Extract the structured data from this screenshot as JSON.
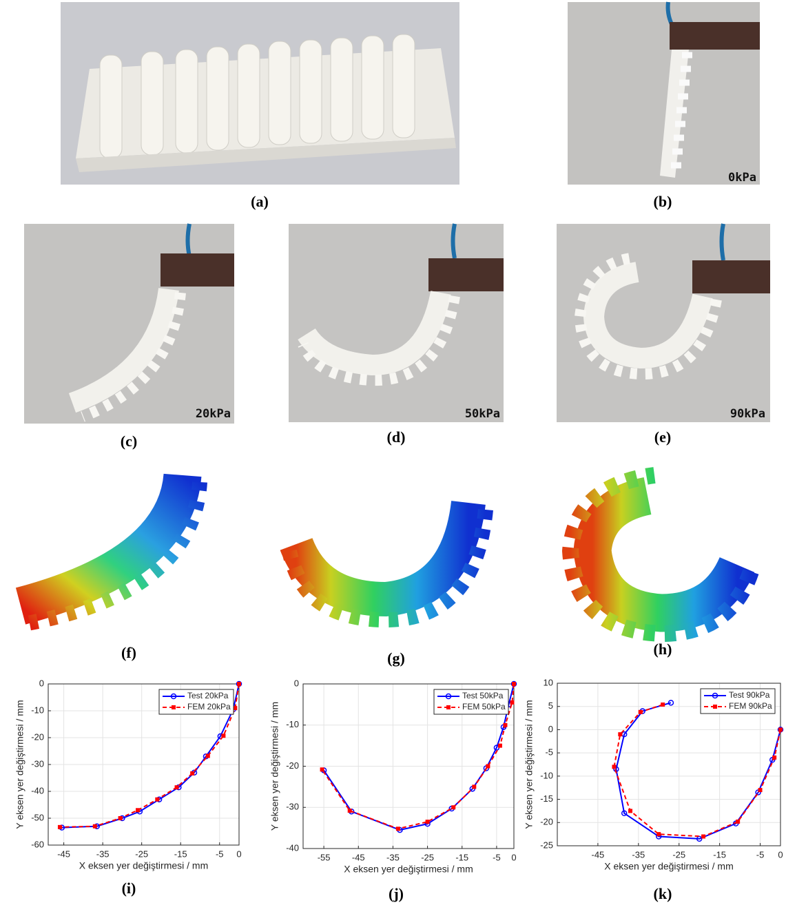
{
  "figure": {
    "labels": [
      "(a)",
      "(b)",
      "(c)",
      "(d)",
      "(e)",
      "(f)",
      "(g)",
      "(h)",
      "(i)",
      "(j)",
      "(k)"
    ],
    "pressure_labels": [
      "0kPa",
      "20kPa",
      "50kPa",
      "90kPa"
    ]
  },
  "chart_data": [
    {
      "type": "line",
      "xlabel": "X eksen yer değiştirmesi / mm",
      "ylabel": "Y eksen yer değiştirmesi / mm",
      "xlim": [
        -49,
        0
      ],
      "xticks": [
        -45,
        -35,
        -25,
        -15,
        -5,
        0
      ],
      "ylim": [
        -60,
        0
      ],
      "yticks": [
        0,
        -10,
        -20,
        -30,
        -40,
        -50,
        -60
      ],
      "grid": true,
      "legend": "upper right",
      "series": [
        {
          "name": "Test 20kPa",
          "color": "#0000ff",
          "style": "solid",
          "marker": "circle",
          "x": [
            0,
            -1.5,
            -4.8,
            -8.5,
            -11.5,
            -15.5,
            -20.5,
            -25.5,
            -30,
            -36.5,
            -45.5
          ],
          "values": [
            0,
            -9.5,
            -19.5,
            -27,
            -33,
            -38.5,
            -43,
            -47.5,
            -50,
            -53,
            -53.5
          ]
        },
        {
          "name": "FEM 20kPa",
          "color": "#ff0000",
          "style": "dashed",
          "marker": "square",
          "x": [
            0,
            -1,
            -4,
            -8,
            -12,
            -16,
            -21,
            -26,
            -30.5,
            -37,
            -46
          ],
          "values": [
            0,
            -9,
            -19.3,
            -26.8,
            -33.3,
            -38.5,
            -43,
            -47,
            -50,
            -53,
            -53.3
          ]
        }
      ]
    },
    {
      "type": "line",
      "xlabel": "X eksen yer değiştirmesi / mm",
      "ylabel": "Y eksen yer değiştirmesi / mm",
      "xlim": [
        -61,
        0
      ],
      "xticks": [
        -55,
        -45,
        -35,
        -25,
        -15,
        -5,
        0
      ],
      "ylim": [
        -40,
        0
      ],
      "yticks": [
        0,
        -10,
        -20,
        -30,
        -40
      ],
      "grid": true,
      "legend": "upper right",
      "series": [
        {
          "name": "Test 50kPa",
          "color": "#0000ff",
          "style": "solid",
          "marker": "circle",
          "x": [
            0,
            -1.5,
            -3,
            -5,
            -8,
            -12,
            -18,
            -25,
            -33,
            -47,
            -55
          ],
          "values": [
            0,
            -5,
            -10.5,
            -15.5,
            -20.5,
            -25.5,
            -30.3,
            -34,
            -35.5,
            -31,
            -21
          ]
        },
        {
          "name": "FEM 50kPa",
          "color": "#ff0000",
          "style": "dashed",
          "marker": "square",
          "x": [
            0,
            -0.5,
            -2.5,
            -4,
            -7.5,
            -11.5,
            -17.5,
            -25,
            -33.5,
            -47.5,
            -55.5
          ],
          "values": [
            0,
            -4.5,
            -10,
            -15,
            -20,
            -25,
            -30,
            -33.5,
            -35.2,
            -30.8,
            -20.8
          ]
        }
      ]
    },
    {
      "type": "line",
      "xlabel": "X eksen yer değiştirmesi / mm",
      "ylabel": "Y eksen yer değiştirmesi / mm",
      "xlim": [
        -55,
        0
      ],
      "xticks": [
        -45,
        -35,
        -25,
        -15,
        -5,
        0
      ],
      "ylim": [
        -25,
        10
      ],
      "yticks": [
        10,
        5,
        0,
        -5,
        -10,
        -15,
        -20,
        -25
      ],
      "grid": true,
      "legend": "upper right",
      "series": [
        {
          "name": "Test 90kPa",
          "color": "#0000ff",
          "style": "solid",
          "marker": "circle",
          "x": [
            0,
            -2,
            -5.5,
            -11,
            -20,
            -30,
            -38.5,
            -40.5,
            -38.5,
            -34,
            -27
          ],
          "values": [
            0,
            -6.5,
            -13.5,
            -20.2,
            -23.5,
            -23,
            -18,
            -8.5,
            -1,
            4,
            5.8
          ]
        },
        {
          "name": "FEM 90kPa",
          "color": "#ff0000",
          "style": "dashed",
          "marker": "square",
          "x": [
            0,
            -1.5,
            -5,
            -10.5,
            -19,
            -30,
            -37,
            -41,
            -39.5,
            -34.5,
            -29
          ],
          "values": [
            0,
            -6,
            -13,
            -19.8,
            -23,
            -22.5,
            -17.5,
            -8,
            -1,
            3.8,
            5.4
          ]
        }
      ]
    }
  ]
}
